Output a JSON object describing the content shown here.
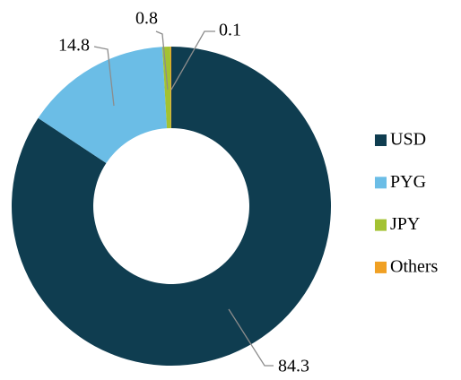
{
  "chart_data": {
    "type": "donut",
    "categories": [
      "USD",
      "PYG",
      "JPY",
      "Others"
    ],
    "values": [
      84.3,
      14.8,
      0.8,
      0.1
    ],
    "colors": [
      "#0f3d50",
      "#6bbde6",
      "#a3c232",
      "#f0a023"
    ],
    "legend": "right"
  }
}
